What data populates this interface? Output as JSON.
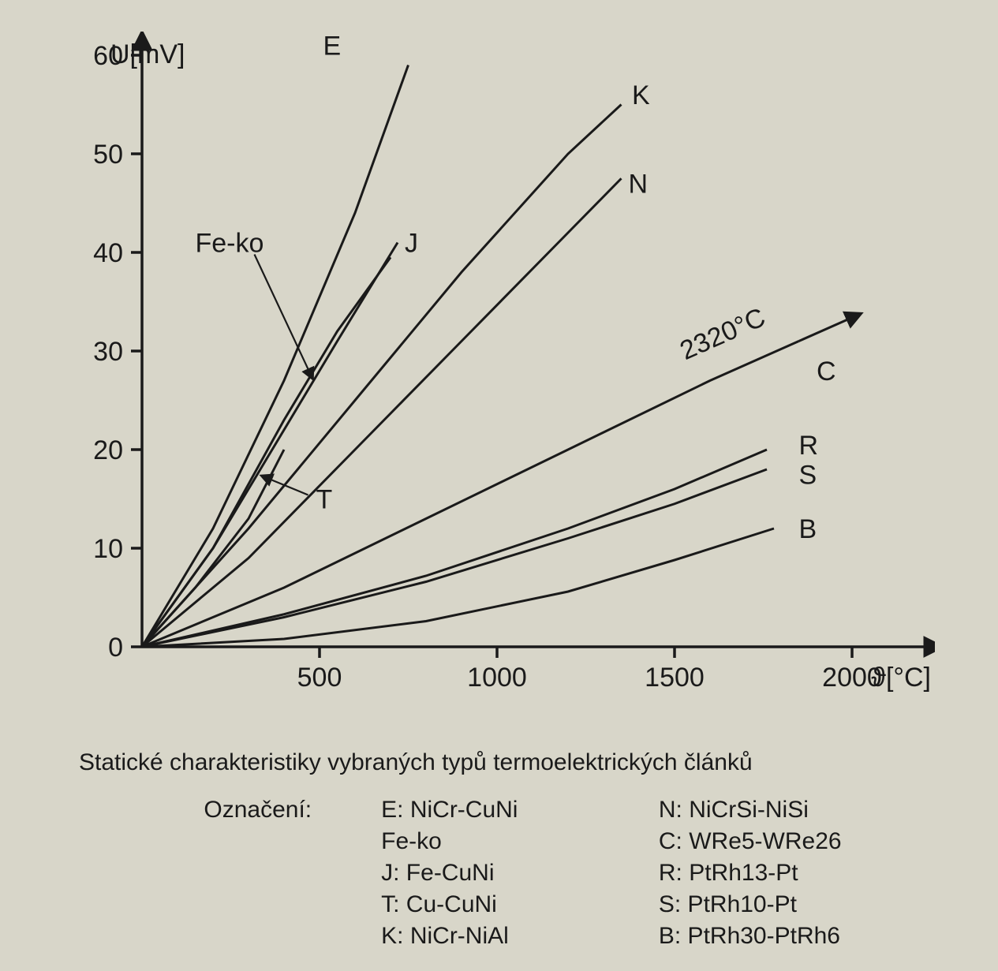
{
  "chart": {
    "type": "line",
    "background_color": "#d8d6c9",
    "stroke_color": "#1a1a1a",
    "axis_stroke_width": 3.5,
    "line_stroke_width": 3.0,
    "tick_length": 14,
    "y_axis": {
      "label": "U[mV]",
      "min": 0,
      "max": 60,
      "ticks": [
        0,
        10,
        20,
        30,
        40,
        50,
        60
      ],
      "label_fontsize": 34,
      "tick_fontsize": 34
    },
    "x_axis": {
      "label": "ϑ[°C]",
      "min": 0,
      "max": 2100,
      "ticks": [
        500,
        1000,
        1500,
        2000
      ],
      "label_fontsize": 34,
      "tick_fontsize": 34
    },
    "series": {
      "E": {
        "label": "E",
        "points": [
          [
            0,
            0
          ],
          [
            200,
            12
          ],
          [
            400,
            27
          ],
          [
            600,
            44
          ],
          [
            750,
            59
          ]
        ]
      },
      "Fe-ko": {
        "label": "Fe-ko",
        "points": [
          [
            0,
            0
          ],
          [
            200,
            10
          ],
          [
            400,
            23
          ],
          [
            550,
            32
          ],
          [
            700,
            39.5
          ]
        ]
      },
      "J": {
        "label": "J",
        "points": [
          [
            0,
            0
          ],
          [
            200,
            10
          ],
          [
            400,
            22
          ],
          [
            550,
            31
          ],
          [
            720,
            41
          ]
        ]
      },
      "T": {
        "label": "T",
        "points": [
          [
            0,
            0
          ],
          [
            150,
            6
          ],
          [
            300,
            13
          ],
          [
            400,
            20
          ]
        ]
      },
      "K": {
        "label": "K",
        "points": [
          [
            0,
            0
          ],
          [
            300,
            12
          ],
          [
            600,
            25
          ],
          [
            900,
            38
          ],
          [
            1200,
            50
          ],
          [
            1350,
            55
          ]
        ]
      },
      "N": {
        "label": "N",
        "points": [
          [
            0,
            0
          ],
          [
            300,
            9
          ],
          [
            600,
            20
          ],
          [
            900,
            31
          ],
          [
            1200,
            42
          ],
          [
            1350,
            47.5
          ]
        ]
      },
      "C": {
        "label": "C",
        "points": [
          [
            0,
            0
          ],
          [
            400,
            6
          ],
          [
            800,
            13
          ],
          [
            1200,
            20
          ],
          [
            1600,
            27
          ],
          [
            1850,
            31
          ]
        ]
      },
      "R": {
        "label": "R",
        "points": [
          [
            0,
            0
          ],
          [
            400,
            3.3
          ],
          [
            800,
            7.2
          ],
          [
            1200,
            12
          ],
          [
            1500,
            16
          ],
          [
            1760,
            20
          ]
        ]
      },
      "S": {
        "label": "S",
        "points": [
          [
            0,
            0
          ],
          [
            400,
            3
          ],
          [
            800,
            6.6
          ],
          [
            1200,
            11
          ],
          [
            1500,
            14.5
          ],
          [
            1760,
            18
          ]
        ]
      },
      "B": {
        "label": "B",
        "points": [
          [
            0,
            0
          ],
          [
            400,
            0.8
          ],
          [
            800,
            2.6
          ],
          [
            1200,
            5.6
          ],
          [
            1500,
            8.8
          ],
          [
            1780,
            12
          ]
        ]
      }
    },
    "c_extension_label": "2320°C",
    "line_label_positions": {
      "E": {
        "x": 510,
        "y": 61
      },
      "Fe-ko": {
        "x": 150,
        "y": 41,
        "leader": true
      },
      "J": {
        "x": 740,
        "y": 41
      },
      "T": {
        "x": 490,
        "y": 15,
        "leader": true
      },
      "K": {
        "x": 1380,
        "y": 56
      },
      "N": {
        "x": 1370,
        "y": 47
      },
      "C": {
        "x": 1900,
        "y": 28
      },
      "R": {
        "x": 1850,
        "y": 20.5
      },
      "S": {
        "x": 1850,
        "y": 17.5
      },
      "B": {
        "x": 1850,
        "y": 12
      }
    }
  },
  "caption": {
    "title": "Statické charakteristiky vybraných typů termoelektrických článků",
    "lead_label": "Označení:",
    "rows": [
      {
        "left_code": "E:",
        "left_desc": "NiCr-CuNi",
        "right_code": "N:",
        "right_desc": "NiCrSi-NiSi"
      },
      {
        "left_code": "",
        "left_desc": "Fe-ko",
        "right_code": "C:",
        "right_desc": "WRe5-WRe26"
      },
      {
        "left_code": "J:",
        "left_desc": "Fe-CuNi",
        "right_code": "R:",
        "right_desc": "PtRh13-Pt"
      },
      {
        "left_code": "T:",
        "left_desc": "Cu-CuNi",
        "right_code": "S:",
        "right_desc": "PtRh10-Pt"
      },
      {
        "left_code": "K:",
        "left_desc": "NiCr-NiAl",
        "right_code": "B:",
        "right_desc": "PtRh30-PtRh6"
      }
    ],
    "fontsize_title": 30,
    "fontsize_legend": 30
  }
}
